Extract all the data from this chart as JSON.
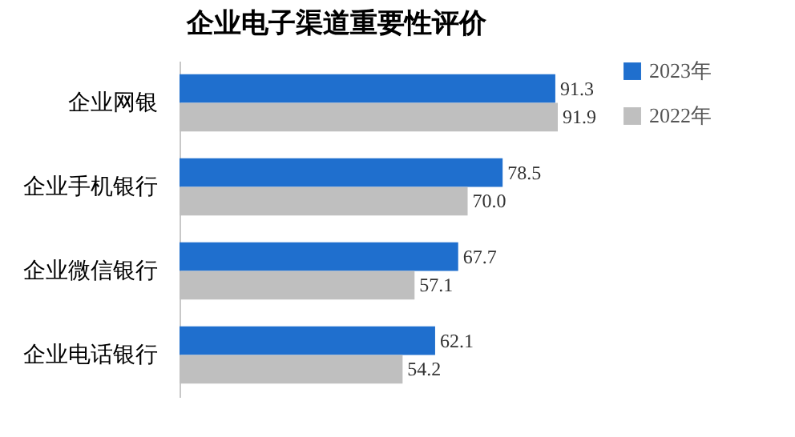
{
  "chart_data": {
    "type": "bar",
    "orientation": "horizontal",
    "title": "企业电子渠道重要性评价",
    "categories": [
      "企业网银",
      "企业手机银行",
      "企业微信银行",
      "企业电话银行"
    ],
    "series": [
      {
        "name": "2023年",
        "color": "#1f6fce",
        "values": [
          91.3,
          78.5,
          67.7,
          62.1
        ],
        "value_labels": [
          "91.3",
          "78.5",
          "67.7",
          "62.1"
        ]
      },
      {
        "name": "2022年",
        "color": "#bfbfbf",
        "values": [
          91.9,
          70.0,
          57.1,
          54.2
        ],
        "value_labels": [
          "91.9",
          "70.0",
          "57.1",
          "54.2"
        ]
      }
    ],
    "legend": "right",
    "grid": false
  }
}
